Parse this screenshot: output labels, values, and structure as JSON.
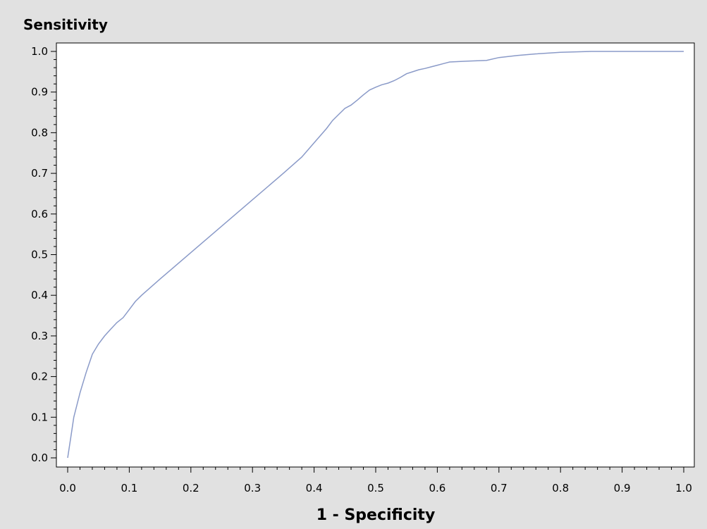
{
  "chart_data": {
    "type": "line",
    "title": "",
    "xlabel": "1 - Specificity",
    "ylabel": "Sensitivity",
    "xlim": [
      0,
      1
    ],
    "ylim": [
      0,
      1
    ],
    "x_ticks": [
      "0.0",
      "0.1",
      "0.2",
      "0.3",
      "0.4",
      "0.5",
      "0.6",
      "0.7",
      "0.8",
      "0.9",
      "1.0"
    ],
    "y_ticks": [
      "0.0",
      "0.1",
      "0.2",
      "0.3",
      "0.4",
      "0.5",
      "0.6",
      "0.7",
      "0.8",
      "0.9",
      "1.0"
    ],
    "grid": false,
    "legend": "none",
    "series": [
      {
        "color": "#8a9ac8",
        "x": [
          0.0,
          0.005,
          0.01,
          0.015,
          0.02,
          0.03,
          0.04,
          0.05,
          0.06,
          0.07,
          0.08,
          0.09,
          0.1,
          0.11,
          0.12,
          0.15,
          0.2,
          0.25,
          0.3,
          0.35,
          0.38,
          0.4,
          0.42,
          0.43,
          0.44,
          0.45,
          0.46,
          0.47,
          0.48,
          0.49,
          0.5,
          0.51,
          0.52,
          0.53,
          0.54,
          0.55,
          0.56,
          0.57,
          0.58,
          0.59,
          0.6,
          0.61,
          0.62,
          0.65,
          0.68,
          0.7,
          0.73,
          0.76,
          0.8,
          0.85,
          0.9,
          0.95,
          1.0
        ],
        "y": [
          0.0,
          0.05,
          0.1,
          0.13,
          0.16,
          0.21,
          0.255,
          0.28,
          0.3,
          0.317,
          0.333,
          0.345,
          0.365,
          0.385,
          0.4,
          0.44,
          0.505,
          0.57,
          0.635,
          0.7,
          0.74,
          0.775,
          0.81,
          0.83,
          0.845,
          0.86,
          0.868,
          0.88,
          0.893,
          0.905,
          0.912,
          0.918,
          0.922,
          0.928,
          0.936,
          0.945,
          0.95,
          0.955,
          0.958,
          0.962,
          0.966,
          0.97,
          0.974,
          0.976,
          0.978,
          0.985,
          0.99,
          0.994,
          0.998,
          1.0,
          1.0,
          1.0,
          1.0
        ]
      }
    ]
  }
}
